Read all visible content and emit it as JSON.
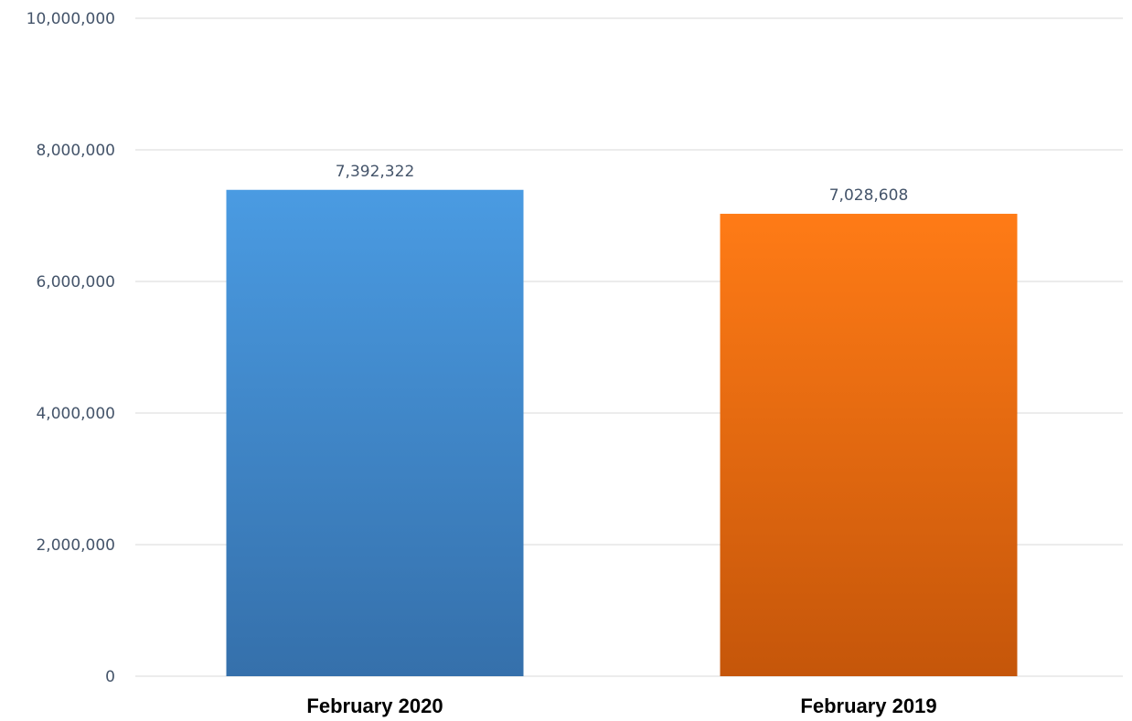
{
  "chart_data": {
    "type": "bar",
    "categories": [
      "February 2020",
      "February 2019"
    ],
    "values": [
      7392322,
      7028608
    ],
    "value_labels": [
      "7,392,322",
      "7,028,608"
    ],
    "bar_colors": [
      {
        "top": "#4A9BE2",
        "bottom": "#3570AB"
      },
      {
        "top": "#FF7B16",
        "bottom": "#C5560A"
      }
    ],
    "ylim": [
      0,
      10000000
    ],
    "yticks": [
      0,
      2000000,
      4000000,
      6000000,
      8000000,
      10000000
    ],
    "ytick_labels": [
      "0",
      "2,000,000",
      "4,000,000",
      "6,000,000",
      "8,000,000",
      "10,000,000"
    ],
    "grid": true,
    "legend": "none",
    "title": "",
    "xlabel": "",
    "ylabel": ""
  }
}
